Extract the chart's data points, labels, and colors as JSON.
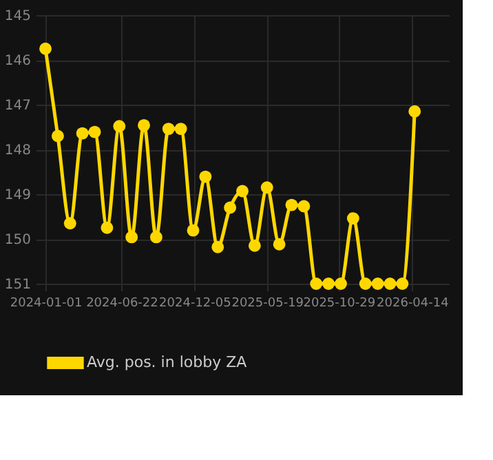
{
  "chart_data": {
    "type": "line",
    "x": [
      "2024-01-01",
      "2024-01-29",
      "2024-02-26",
      "2024-03-25",
      "2024-04-22",
      "2024-05-20",
      "2024-06-17",
      "2024-07-15",
      "2024-08-12",
      "2024-09-09",
      "2024-10-07",
      "2024-11-04",
      "2024-12-02",
      "2024-12-30",
      "2025-01-27",
      "2025-02-24",
      "2025-03-24",
      "2025-04-21",
      "2025-05-19",
      "2025-06-16",
      "2025-07-14",
      "2025-08-11",
      "2025-09-08",
      "2025-10-06",
      "2025-11-03",
      "2025-12-01",
      "2025-12-29",
      "2026-01-26",
      "2026-02-23",
      "2026-03-23",
      "2026-04-20"
    ],
    "series": [
      {
        "name": "Avg. pos. in lobby ZA",
        "color": "#ffd700",
        "values": [
          145.75,
          147.7,
          149.65,
          147.64,
          147.61,
          149.75,
          147.48,
          149.96,
          147.46,
          149.96,
          147.54,
          147.54,
          149.81,
          148.61,
          150.18,
          149.3,
          148.93,
          150.15,
          148.85,
          150.12,
          149.24,
          149.27,
          151,
          151,
          151,
          149.54,
          151,
          151,
          151,
          151,
          147.15
        ]
      }
    ],
    "ylim": [
      151,
      145
    ],
    "yticks": [
      145,
      146,
      147,
      148,
      149,
      150,
      151
    ],
    "xlim": [
      "2023-12-10",
      "2026-07-07"
    ],
    "xticks": [
      "2024-01-01",
      "2024-06-22",
      "2024-12-05",
      "2025-05-19",
      "2025-10-29",
      "2026-04-14"
    ],
    "grid": true,
    "legend": "bottom",
    "marker": "circle",
    "line_style": "solid"
  }
}
